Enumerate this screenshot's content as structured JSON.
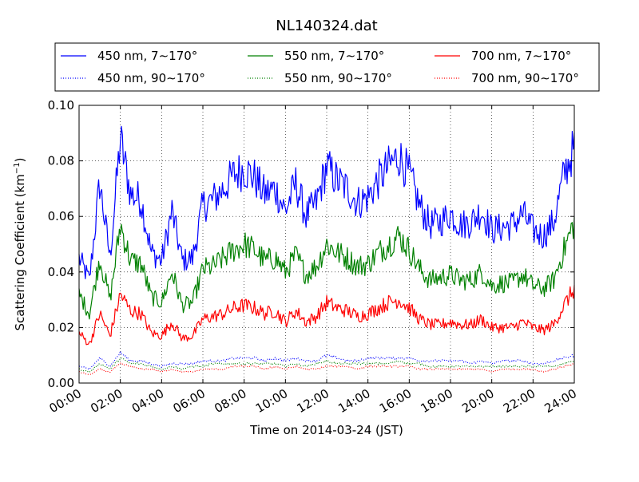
{
  "chart_data": {
    "type": "line",
    "title": "NL140324.dat",
    "xlabel": "Time on 2014-03-24 (JST)",
    "ylabel": "Scattering Coefficient (km",
    "ylabel_superscript": "−1",
    "ylabel_close": ")",
    "xlim_hours": [
      0,
      24
    ],
    "ylim": [
      0.0,
      0.1
    ],
    "x_ticks": [
      "00:00",
      "02:00",
      "04:00",
      "06:00",
      "08:00",
      "10:00",
      "12:00",
      "14:00",
      "16:00",
      "18:00",
      "20:00",
      "22:00",
      "24:00"
    ],
    "y_ticks": [
      "0.00",
      "0.02",
      "0.04",
      "0.06",
      "0.08",
      "0.10"
    ],
    "grid": true,
    "legend_placement": "top (above plot, 3 columns)",
    "x_hours": [
      0,
      0.5,
      1,
      1.5,
      2,
      2.5,
      3,
      3.5,
      4,
      4.5,
      5,
      5.5,
      6,
      6.5,
      7,
      7.5,
      8,
      8.5,
      9,
      9.5,
      10,
      10.5,
      11,
      11.5,
      12,
      12.5,
      13,
      13.5,
      14,
      14.5,
      15,
      15.5,
      16,
      16.5,
      17,
      17.5,
      18,
      18.5,
      19,
      19.5,
      20,
      20.5,
      21,
      21.5,
      22,
      22.5,
      23,
      23.5,
      24
    ],
    "series": [
      {
        "name": "450 nm, 7∼170°",
        "color": "#0000ff",
        "style": "solid",
        "values": [
          0.045,
          0.037,
          0.072,
          0.045,
          0.088,
          0.068,
          0.066,
          0.047,
          0.044,
          0.062,
          0.044,
          0.045,
          0.064,
          0.066,
          0.07,
          0.075,
          0.077,
          0.074,
          0.068,
          0.07,
          0.062,
          0.072,
          0.06,
          0.065,
          0.078,
          0.073,
          0.07,
          0.065,
          0.067,
          0.073,
          0.078,
          0.082,
          0.075,
          0.064,
          0.057,
          0.058,
          0.061,
          0.057,
          0.058,
          0.062,
          0.055,
          0.056,
          0.057,
          0.061,
          0.055,
          0.053,
          0.058,
          0.075,
          0.085
        ]
      },
      {
        "name": "550 nm, 7∼170°",
        "color": "#008000",
        "style": "solid",
        "values": [
          0.032,
          0.025,
          0.045,
          0.03,
          0.057,
          0.044,
          0.043,
          0.031,
          0.029,
          0.04,
          0.028,
          0.029,
          0.041,
          0.042,
          0.045,
          0.048,
          0.05,
          0.048,
          0.044,
          0.045,
          0.04,
          0.046,
          0.039,
          0.042,
          0.05,
          0.047,
          0.045,
          0.042,
          0.043,
          0.047,
          0.05,
          0.053,
          0.048,
          0.041,
          0.037,
          0.038,
          0.039,
          0.037,
          0.037,
          0.04,
          0.035,
          0.036,
          0.036,
          0.039,
          0.035,
          0.034,
          0.037,
          0.048,
          0.058
        ]
      },
      {
        "name": "700 nm, 7∼170°",
        "color": "#ff0000",
        "style": "solid",
        "values": [
          0.018,
          0.014,
          0.025,
          0.017,
          0.032,
          0.026,
          0.025,
          0.018,
          0.017,
          0.022,
          0.016,
          0.017,
          0.023,
          0.024,
          0.025,
          0.027,
          0.028,
          0.027,
          0.025,
          0.026,
          0.022,
          0.026,
          0.022,
          0.024,
          0.029,
          0.027,
          0.026,
          0.024,
          0.025,
          0.027,
          0.029,
          0.03,
          0.027,
          0.023,
          0.021,
          0.021,
          0.022,
          0.021,
          0.021,
          0.023,
          0.02,
          0.02,
          0.02,
          0.022,
          0.02,
          0.019,
          0.021,
          0.028,
          0.034
        ]
      },
      {
        "name": "450 nm, 90∼170°",
        "color": "#0000ff",
        "style": "dotted",
        "values": [
          0.006,
          0.005,
          0.009,
          0.006,
          0.011,
          0.008,
          0.008,
          0.007,
          0.006,
          0.007,
          0.007,
          0.007,
          0.008,
          0.008,
          0.008,
          0.009,
          0.009,
          0.009,
          0.008,
          0.009,
          0.008,
          0.009,
          0.008,
          0.008,
          0.01,
          0.009,
          0.008,
          0.008,
          0.009,
          0.009,
          0.009,
          0.009,
          0.009,
          0.008,
          0.008,
          0.008,
          0.008,
          0.008,
          0.007,
          0.008,
          0.007,
          0.008,
          0.008,
          0.008,
          0.007,
          0.007,
          0.008,
          0.009,
          0.01
        ]
      },
      {
        "name": "550 nm, 90∼170°",
        "color": "#008000",
        "style": "dotted",
        "values": [
          0.005,
          0.004,
          0.007,
          0.005,
          0.009,
          0.007,
          0.007,
          0.006,
          0.005,
          0.006,
          0.005,
          0.006,
          0.006,
          0.007,
          0.007,
          0.007,
          0.007,
          0.007,
          0.007,
          0.007,
          0.006,
          0.007,
          0.006,
          0.007,
          0.008,
          0.007,
          0.007,
          0.007,
          0.007,
          0.007,
          0.007,
          0.008,
          0.007,
          0.007,
          0.006,
          0.006,
          0.006,
          0.006,
          0.006,
          0.006,
          0.006,
          0.006,
          0.006,
          0.006,
          0.006,
          0.006,
          0.006,
          0.007,
          0.008
        ]
      },
      {
        "name": "700 nm, 90∼170°",
        "color": "#ff0000",
        "style": "dotted",
        "values": [
          0.004,
          0.003,
          0.005,
          0.004,
          0.007,
          0.006,
          0.005,
          0.005,
          0.004,
          0.005,
          0.004,
          0.004,
          0.005,
          0.005,
          0.005,
          0.006,
          0.006,
          0.006,
          0.005,
          0.006,
          0.005,
          0.006,
          0.005,
          0.005,
          0.006,
          0.006,
          0.006,
          0.005,
          0.006,
          0.006,
          0.006,
          0.006,
          0.006,
          0.005,
          0.005,
          0.005,
          0.005,
          0.005,
          0.005,
          0.005,
          0.004,
          0.005,
          0.005,
          0.005,
          0.005,
          0.004,
          0.005,
          0.006,
          0.007
        ]
      }
    ]
  }
}
